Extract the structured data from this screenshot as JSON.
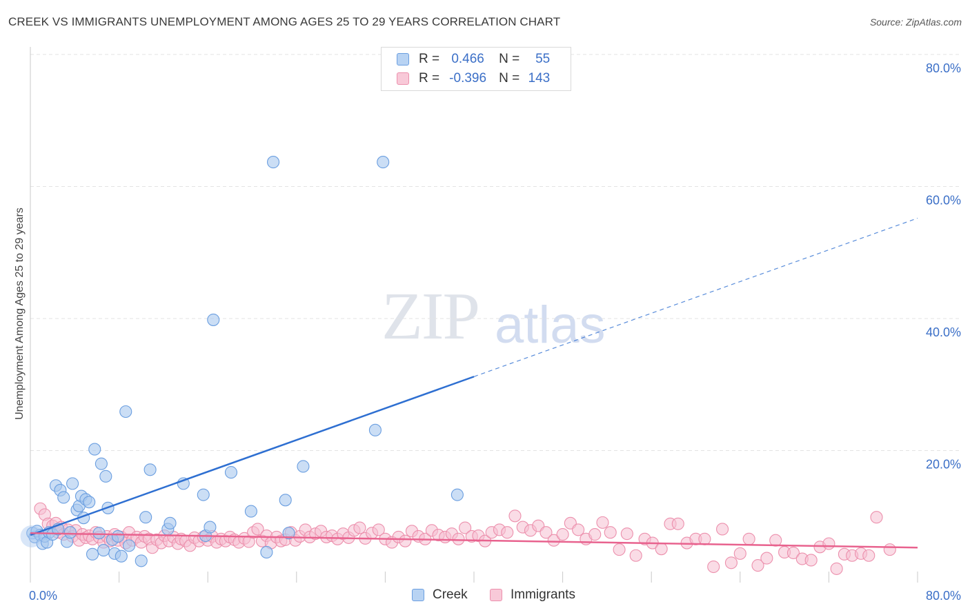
{
  "header": {
    "title": "CREEK VS IMMIGRANTS UNEMPLOYMENT AMONG AGES 25 TO 29 YEARS CORRELATION CHART",
    "source": "Source: ZipAtlas.com"
  },
  "watermark": {
    "zip": "ZIP",
    "atlas": "atlas"
  },
  "legend": {
    "rows": [
      {
        "r_label": "R =",
        "r_value": "0.466",
        "n_label": "N =",
        "n_value": "55"
      },
      {
        "r_label": "R =",
        "r_value": "-0.396",
        "n_label": "N =",
        "n_value": "143"
      }
    ]
  },
  "colors": {
    "creek_fill": "#a9c8ef",
    "creek_stroke": "#6a9ee0",
    "creek_line": "#2e6fd1",
    "imm_fill": "#f6c0d1",
    "imm_stroke": "#ec8fac",
    "imm_line": "#e8628e",
    "tick_text": "#3b6fc7",
    "grid": "#e3e3e3"
  },
  "chart_data": {
    "type": "scatter",
    "title": "CREEK VS IMMIGRANTS UNEMPLOYMENT AMONG AGES 25 TO 29 YEARS CORRELATION CHART",
    "xlabel": "",
    "ylabel": "Unemployment Among Ages 25 to 29 years",
    "xlim": [
      0,
      80
    ],
    "ylim": [
      0,
      80
    ],
    "x_tick_labels": [
      "0.0%",
      "80.0%"
    ],
    "y_ticks": [
      20,
      40,
      60,
      80
    ],
    "y_tick_labels": [
      "20.0%",
      "40.0%",
      "60.0%",
      "80.0%"
    ],
    "grid": true,
    "legend_position": "top-center",
    "series": [
      {
        "name": "Creek",
        "R": 0.466,
        "N": 55,
        "trend": {
          "x0": 0.0,
          "y0": 7.2,
          "x_solid_end": 40.0,
          "x_dash_end": 80.0,
          "slope": 0.6
        },
        "points": [
          [
            0.2,
            7.5
          ],
          [
            0.4,
            6.9
          ],
          [
            0.6,
            7.8
          ],
          [
            0.9,
            7.2
          ],
          [
            1.1,
            5.9
          ],
          [
            1.3,
            7.0
          ],
          [
            1.5,
            6.1
          ],
          [
            1.7,
            7.6
          ],
          [
            2.0,
            7.3
          ],
          [
            2.3,
            14.7
          ],
          [
            2.5,
            8.1
          ],
          [
            2.7,
            14.0
          ],
          [
            3.0,
            12.9
          ],
          [
            3.3,
            6.2
          ],
          [
            3.6,
            7.6
          ],
          [
            3.8,
            15.0
          ],
          [
            4.2,
            11.0
          ],
          [
            4.4,
            11.6
          ],
          [
            4.6,
            13.1
          ],
          [
            4.8,
            9.8
          ],
          [
            5.0,
            12.6
          ],
          [
            5.3,
            12.2
          ],
          [
            5.6,
            4.3
          ],
          [
            5.8,
            20.2
          ],
          [
            6.2,
            7.5
          ],
          [
            6.4,
            18.0
          ],
          [
            6.6,
            4.9
          ],
          [
            6.8,
            16.1
          ],
          [
            7.0,
            11.3
          ],
          [
            7.4,
            6.5
          ],
          [
            7.6,
            4.4
          ],
          [
            7.9,
            7.0
          ],
          [
            8.2,
            4.0
          ],
          [
            8.6,
            25.9
          ],
          [
            8.9,
            5.6
          ],
          [
            10.0,
            3.3
          ],
          [
            10.4,
            9.9
          ],
          [
            10.8,
            17.1
          ],
          [
            12.4,
            8.1
          ],
          [
            12.6,
            9.0
          ],
          [
            13.8,
            15.0
          ],
          [
            15.6,
            13.3
          ],
          [
            15.8,
            7.1
          ],
          [
            16.2,
            8.4
          ],
          [
            16.5,
            39.8
          ],
          [
            18.1,
            16.7
          ],
          [
            19.9,
            10.8
          ],
          [
            21.3,
            4.6
          ],
          [
            21.9,
            63.7
          ],
          [
            23.0,
            12.5
          ],
          [
            23.3,
            7.5
          ],
          [
            24.6,
            17.6
          ],
          [
            31.1,
            23.1
          ],
          [
            31.8,
            63.7
          ],
          [
            38.5,
            13.3
          ]
        ]
      },
      {
        "name": "Immigrants",
        "R": -0.396,
        "N": 143,
        "trend": {
          "x0": 0.0,
          "y0": 7.5,
          "x_end": 80.0,
          "y_end": 5.3
        },
        "points": [
          [
            0.9,
            11.2
          ],
          [
            1.3,
            10.3
          ],
          [
            1.6,
            8.9
          ],
          [
            2.0,
            8.6
          ],
          [
            2.3,
            9.0
          ],
          [
            2.5,
            7.6
          ],
          [
            2.8,
            8.4
          ],
          [
            3.0,
            7.3
          ],
          [
            3.4,
            8.0
          ],
          [
            3.8,
            7.0
          ],
          [
            4.1,
            7.9
          ],
          [
            4.4,
            6.4
          ],
          [
            4.7,
            7.3
          ],
          [
            5.0,
            6.8
          ],
          [
            5.3,
            7.1
          ],
          [
            5.6,
            6.6
          ],
          [
            5.9,
            7.6
          ],
          [
            6.2,
            6.9
          ],
          [
            6.6,
            6.1
          ],
          [
            6.9,
            7.0
          ],
          [
            7.2,
            6.3
          ],
          [
            7.6,
            7.3
          ],
          [
            7.9,
            6.4
          ],
          [
            8.2,
            6.9
          ],
          [
            8.6,
            6.0
          ],
          [
            8.9,
            7.6
          ],
          [
            9.2,
            6.4
          ],
          [
            9.6,
            6.9
          ],
          [
            10.0,
            6.1
          ],
          [
            10.3,
            7.0
          ],
          [
            10.7,
            6.6
          ],
          [
            11.0,
            5.3
          ],
          [
            11.4,
            6.5
          ],
          [
            11.8,
            6.0
          ],
          [
            12.1,
            7.1
          ],
          [
            12.5,
            6.3
          ],
          [
            12.9,
            6.9
          ],
          [
            13.3,
            5.9
          ],
          [
            13.6,
            6.6
          ],
          [
            14.0,
            6.3
          ],
          [
            14.4,
            5.6
          ],
          [
            14.8,
            6.8
          ],
          [
            15.2,
            6.3
          ],
          [
            15.6,
            6.9
          ],
          [
            16.0,
            6.4
          ],
          [
            16.4,
            7.0
          ],
          [
            16.8,
            6.1
          ],
          [
            17.2,
            6.6
          ],
          [
            17.6,
            6.3
          ],
          [
            18.0,
            6.9
          ],
          [
            18.4,
            6.5
          ],
          [
            18.8,
            6.1
          ],
          [
            19.3,
            6.7
          ],
          [
            19.7,
            6.2
          ],
          [
            20.1,
            7.6
          ],
          [
            20.5,
            8.1
          ],
          [
            20.9,
            6.3
          ],
          [
            21.3,
            7.1
          ],
          [
            21.7,
            6.0
          ],
          [
            22.2,
            6.9
          ],
          [
            22.6,
            6.3
          ],
          [
            23.0,
            6.5
          ],
          [
            23.5,
            7.6
          ],
          [
            23.9,
            6.4
          ],
          [
            24.3,
            7.0
          ],
          [
            24.8,
            8.0
          ],
          [
            25.2,
            6.9
          ],
          [
            25.7,
            7.4
          ],
          [
            26.2,
            7.8
          ],
          [
            26.7,
            6.9
          ],
          [
            27.2,
            7.1
          ],
          [
            27.7,
            6.6
          ],
          [
            28.2,
            7.4
          ],
          [
            28.7,
            6.8
          ],
          [
            29.2,
            7.9
          ],
          [
            29.7,
            8.3
          ],
          [
            30.2,
            6.7
          ],
          [
            30.8,
            7.5
          ],
          [
            31.4,
            8.0
          ],
          [
            32.0,
            6.6
          ],
          [
            32.6,
            6.1
          ],
          [
            33.2,
            6.9
          ],
          [
            33.8,
            6.3
          ],
          [
            34.4,
            7.8
          ],
          [
            35.0,
            7.0
          ],
          [
            35.6,
            6.6
          ],
          [
            36.2,
            7.9
          ],
          [
            36.8,
            7.2
          ],
          [
            37.4,
            6.9
          ],
          [
            38.0,
            7.4
          ],
          [
            38.6,
            6.6
          ],
          [
            39.2,
            8.3
          ],
          [
            39.8,
            7.0
          ],
          [
            40.4,
            7.1
          ],
          [
            41.0,
            6.3
          ],
          [
            41.6,
            7.6
          ],
          [
            42.3,
            8.0
          ],
          [
            43.0,
            7.6
          ],
          [
            43.7,
            10.1
          ],
          [
            44.4,
            8.4
          ],
          [
            45.1,
            7.9
          ],
          [
            45.8,
            8.6
          ],
          [
            46.5,
            7.6
          ],
          [
            47.2,
            6.4
          ],
          [
            48.0,
            7.3
          ],
          [
            48.7,
            9.0
          ],
          [
            49.4,
            8.0
          ],
          [
            50.1,
            6.6
          ],
          [
            50.9,
            7.3
          ],
          [
            51.6,
            9.1
          ],
          [
            52.3,
            7.6
          ],
          [
            53.1,
            5.0
          ],
          [
            53.8,
            7.4
          ],
          [
            54.6,
            4.1
          ],
          [
            55.4,
            6.6
          ],
          [
            56.1,
            6.0
          ],
          [
            56.9,
            5.1
          ],
          [
            57.7,
            8.9
          ],
          [
            58.4,
            8.9
          ],
          [
            59.2,
            6.0
          ],
          [
            60.0,
            6.6
          ],
          [
            60.8,
            6.6
          ],
          [
            61.6,
            2.4
          ],
          [
            62.4,
            8.1
          ],
          [
            63.2,
            3.0
          ],
          [
            64.0,
            4.4
          ],
          [
            64.8,
            6.6
          ],
          [
            65.6,
            2.6
          ],
          [
            66.4,
            3.7
          ],
          [
            67.2,
            6.4
          ],
          [
            68.0,
            4.6
          ],
          [
            68.8,
            4.5
          ],
          [
            69.6,
            3.6
          ],
          [
            70.4,
            3.4
          ],
          [
            71.2,
            5.4
          ],
          [
            72.0,
            5.9
          ],
          [
            72.7,
            2.1
          ],
          [
            73.4,
            4.3
          ],
          [
            74.1,
            4.1
          ],
          [
            74.9,
            4.4
          ],
          [
            75.6,
            4.1
          ],
          [
            76.3,
            9.9
          ],
          [
            77.5,
            5.0
          ]
        ]
      }
    ]
  }
}
